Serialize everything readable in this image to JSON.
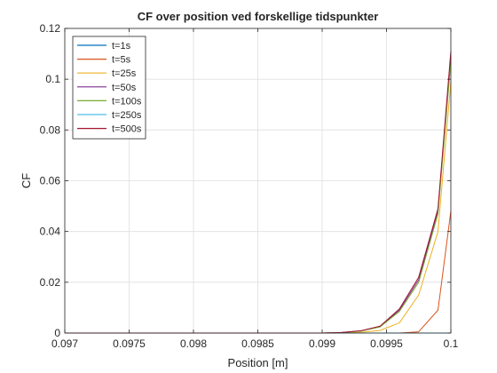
{
  "chart_data": {
    "type": "line",
    "title": "CF over position ved forskellige tidspunkter",
    "xlabel": "Position [m]",
    "ylabel": "CF",
    "xlim": [
      0.097,
      0.1
    ],
    "ylim": [
      0,
      0.12
    ],
    "xticks": [
      0.097,
      0.0975,
      0.098,
      0.0985,
      0.099,
      0.0995,
      0.1
    ],
    "xtick_labels": [
      "0.097",
      "0.0975",
      "0.098",
      "0.0985",
      "0.099",
      "0.0995",
      "0.1"
    ],
    "yticks": [
      0,
      0.02,
      0.04,
      0.06,
      0.08,
      0.1,
      0.12
    ],
    "ytick_labels": [
      "0",
      "0.02",
      "0.04",
      "0.06",
      "0.08",
      "0.1",
      "0.12"
    ],
    "grid": true,
    "legend_position": "top-left",
    "x": [
      0.097,
      0.099,
      0.09915,
      0.0993,
      0.09945,
      0.0996,
      0.09975,
      0.0999,
      0.1
    ],
    "series": [
      {
        "name": "t=1s",
        "color": "#0072BD",
        "values": [
          0,
          0,
          0,
          0,
          0,
          0,
          0,
          0,
          0
        ]
      },
      {
        "name": "t=5s",
        "color": "#D95319",
        "values": [
          0,
          0,
          0,
          0,
          0,
          0,
          0.0005,
          0.009,
          0.048
        ]
      },
      {
        "name": "t=25s",
        "color": "#EDB120",
        "values": [
          0,
          0,
          0.0001,
          0.0003,
          0.001,
          0.004,
          0.015,
          0.04,
          0.099
        ]
      },
      {
        "name": "t=50s",
        "color": "#7E2F8E",
        "values": [
          0,
          0,
          0.0002,
          0.0008,
          0.0025,
          0.009,
          0.021,
          0.048,
          0.109
        ]
      },
      {
        "name": "t=100s",
        "color": "#77AC30",
        "values": [
          0,
          0,
          0.0002,
          0.0008,
          0.0024,
          0.0085,
          0.02,
          0.047,
          0.107
        ]
      },
      {
        "name": "t=250s",
        "color": "#4DBEEE",
        "values": [
          0,
          0,
          0,
          0,
          0,
          0,
          0,
          0,
          0
        ]
      },
      {
        "name": "t=500s",
        "color": "#A2142F",
        "values": [
          0,
          0,
          0.0002,
          0.0009,
          0.0027,
          0.0095,
          0.022,
          0.049,
          0.111
        ]
      }
    ]
  }
}
